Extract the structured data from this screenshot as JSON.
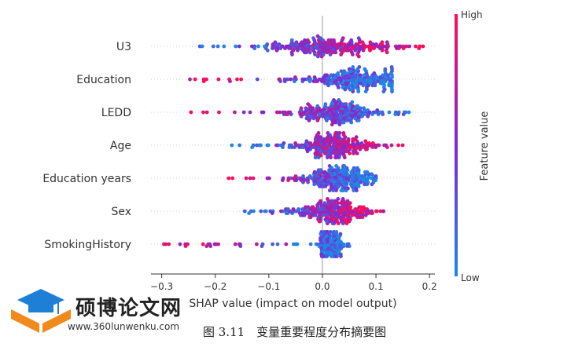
{
  "chart_data": {
    "type": "beeswarm",
    "xlabel": "SHAP value (impact on model output)",
    "xlim": [
      -0.32,
      0.21
    ],
    "xticks": [
      -0.3,
      -0.2,
      -0.1,
      0.0,
      0.1,
      0.2
    ],
    "xtick_labels": [
      "−0.3",
      "−0.2",
      "−0.1",
      "0.0",
      "0.1",
      "0.2"
    ],
    "features": [
      {
        "name": "U3",
        "min": -0.24,
        "max": 0.19,
        "center": 0.02,
        "spread": 0.11,
        "low_side": "negative"
      },
      {
        "name": "Education",
        "min": -0.27,
        "max": 0.13,
        "center": 0.06,
        "spread": 0.09,
        "low_side": "positive"
      },
      {
        "name": "LEDD",
        "min": -0.25,
        "max": 0.17,
        "center": 0.02,
        "spread": 0.08,
        "low_side": "positive"
      },
      {
        "name": "Age",
        "min": -0.17,
        "max": 0.15,
        "center": 0.02,
        "spread": 0.07,
        "low_side": "negative"
      },
      {
        "name": "Education years",
        "min": -0.18,
        "max": 0.1,
        "center": 0.03,
        "spread": 0.06,
        "low_side": "positive"
      },
      {
        "name": "Sex",
        "min": -0.17,
        "max": 0.13,
        "center": 0.02,
        "spread": 0.06,
        "low_side": "negative"
      },
      {
        "name": "SmokingHistory",
        "min": -0.3,
        "max": 0.06,
        "center": 0.015,
        "spread": 0.02,
        "low_side": "positive"
      }
    ],
    "colorbar": {
      "high_label": "High",
      "low_label": "Low",
      "title": "Feature value"
    },
    "colors": {
      "low": "#1e88e5",
      "high": "#ff0d57"
    }
  },
  "caption": "图 3.11　变量重要程度分布摘要图",
  "watermark": {
    "brand": "硕博论文网",
    "url": "www.360lunwenku.com"
  }
}
